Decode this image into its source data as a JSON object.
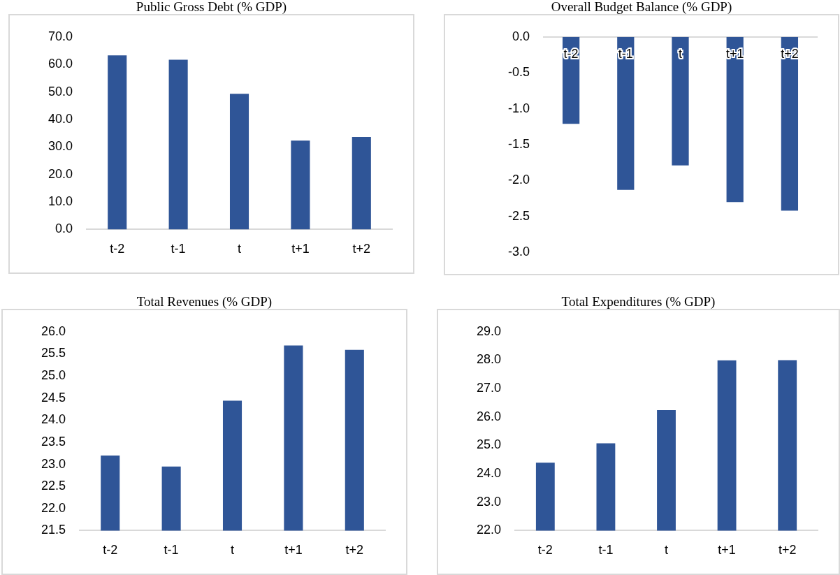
{
  "chart_data": [
    {
      "type": "bar",
      "title": "Public Gross Debt (% GDP)",
      "categories": [
        "t-2",
        "t-1",
        "t",
        "t+1",
        "t+2"
      ],
      "values": [
        63.3,
        61.7,
        49.3,
        32.3,
        33.6
      ],
      "color": "#2f5597",
      "ylim": [
        0,
        70
      ],
      "yticks": [
        {
          "value": 0,
          "label": "0.0"
        },
        {
          "value": 10,
          "label": "10.0"
        },
        {
          "value": 20,
          "label": "20.0"
        },
        {
          "value": 30,
          "label": "30.0"
        },
        {
          "value": 40,
          "label": "40.0"
        },
        {
          "value": 50,
          "label": "50.0"
        },
        {
          "value": 60,
          "label": "60.0"
        },
        {
          "value": 70,
          "label": "70.0"
        }
      ],
      "grid": false,
      "legend": false
    },
    {
      "type": "bar",
      "title": "Overall Budget Balance (% GDP)",
      "categories": [
        "t-2",
        "t-1",
        "t",
        "t+1",
        "t+2"
      ],
      "values": [
        -1.21,
        -2.13,
        -1.79,
        -2.3,
        -2.42
      ],
      "color": "#2f5597",
      "ylim": [
        -3,
        0
      ],
      "yticks": [
        {
          "value": -3,
          "label": "-3.0"
        },
        {
          "value": -2.5,
          "label": "-2.5"
        },
        {
          "value": -2,
          "label": "-2.0"
        },
        {
          "value": -1.5,
          "label": "-1.5"
        },
        {
          "value": -1,
          "label": "-1.0"
        },
        {
          "value": -0.5,
          "label": "-0.5"
        },
        {
          "value": 0,
          "label": "0.0"
        }
      ],
      "grid": false,
      "legend": false
    },
    {
      "type": "bar",
      "title": "Total Revenues (% GDP)",
      "categories": [
        "t-2",
        "t-1",
        "t",
        "t+1",
        "t+2"
      ],
      "values": [
        23.2,
        22.95,
        24.44,
        25.69,
        25.59
      ],
      "color": "#2f5597",
      "ylim": [
        21.5,
        26
      ],
      "yticks": [
        {
          "value": 21.5,
          "label": "21.5"
        },
        {
          "value": 22,
          "label": "22.0"
        },
        {
          "value": 22.5,
          "label": "22.5"
        },
        {
          "value": 23,
          "label": "23.0"
        },
        {
          "value": 23.5,
          "label": "23.5"
        },
        {
          "value": 24,
          "label": "24.0"
        },
        {
          "value": 24.5,
          "label": "24.5"
        },
        {
          "value": 25,
          "label": "25.0"
        },
        {
          "value": 25.5,
          "label": "25.5"
        },
        {
          "value": 26,
          "label": "26.0"
        }
      ],
      "grid": false,
      "legend": false
    },
    {
      "type": "bar",
      "title": "Total Expenditures (% GDP)",
      "categories": [
        "t-2",
        "t-1",
        "t",
        "t+1",
        "t+2"
      ],
      "values": [
        24.39,
        25.07,
        26.24,
        27.99,
        28.0
      ],
      "color": "#2f5597",
      "ylim": [
        22,
        29
      ],
      "yticks": [
        {
          "value": 22,
          "label": "22.0"
        },
        {
          "value": 23,
          "label": "23.0"
        },
        {
          "value": 24,
          "label": "24.0"
        },
        {
          "value": 25,
          "label": "25.0"
        },
        {
          "value": 26,
          "label": "26.0"
        },
        {
          "value": 27,
          "label": "27.0"
        },
        {
          "value": 28,
          "label": "28.0"
        },
        {
          "value": 29,
          "label": "29.0"
        }
      ],
      "grid": false,
      "legend": false
    }
  ]
}
